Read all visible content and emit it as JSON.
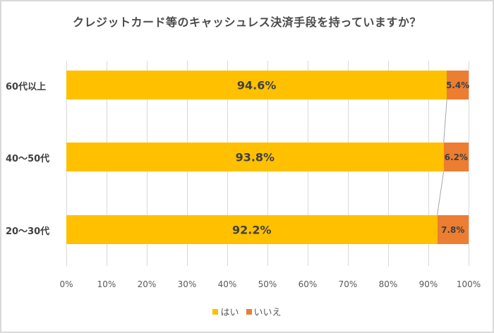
{
  "colors": {
    "yes": "#FFC000",
    "no": "#ED7D31",
    "grid": "#d9d9d9",
    "text": "#404040"
  },
  "chart_data": {
    "type": "bar",
    "orientation": "horizontal",
    "stacked": "100%",
    "title": "クレジットカード等のキャッシュレス決済手段を持っていますか？",
    "categories": [
      "60代以上",
      "40～50代",
      "20～30代"
    ],
    "series": [
      {
        "name": "はい",
        "values": [
          94.6,
          93.8,
          92.2
        ],
        "labels": [
          "94.6%",
          "93.8%",
          "92.2%"
        ]
      },
      {
        "name": "いいえ",
        "values": [
          5.4,
          6.2,
          7.8
        ],
        "labels": [
          "5.4%",
          "6.2%",
          "7.8%"
        ]
      }
    ],
    "xlabel": "",
    "ylabel": "",
    "xlim": [
      0,
      100
    ],
    "x_ticks": [
      "0%",
      "10%",
      "20%",
      "30%",
      "40%",
      "50%",
      "60%",
      "70%",
      "80%",
      "90%",
      "100%"
    ],
    "grid": true,
    "series_lines": true,
    "legend_position": "bottom"
  },
  "legend": [
    {
      "label": "はい",
      "color": "#FFC000"
    },
    {
      "label": "いいえ",
      "color": "#ED7D31"
    }
  ]
}
